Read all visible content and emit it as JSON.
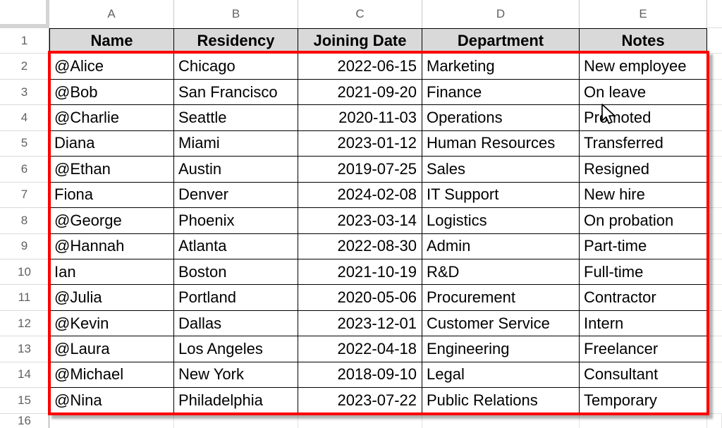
{
  "app": {
    "type": "spreadsheet-grid"
  },
  "colors": {
    "selection_red": "#fb0000",
    "header_row_fill": "#d9d9d9",
    "cell_border": "#000000",
    "ui_header_text": "#616161",
    "corner_gray": "#d4d4d4"
  },
  "column_headers": [
    "A",
    "B",
    "C",
    "D",
    "E"
  ],
  "row_numbers": [
    "1",
    "2",
    "3",
    "4",
    "5",
    "6",
    "7",
    "8",
    "9",
    "10",
    "11",
    "12",
    "13",
    "14",
    "15",
    "16"
  ],
  "table": {
    "headers": [
      "Name",
      "Residency",
      "Joining Date",
      "Department",
      "Notes"
    ],
    "rows": [
      [
        "@Alice",
        "Chicago",
        "2022-06-15",
        "Marketing",
        "New employee"
      ],
      [
        "@Bob",
        "San Francisco",
        "2021-09-20",
        "Finance",
        "On leave"
      ],
      [
        "@Charlie",
        "Seattle",
        "2020-11-03",
        "Operations",
        "Promoted"
      ],
      [
        "Diana",
        "Miami",
        "2023-01-12",
        "Human Resources",
        "Transferred"
      ],
      [
        "@Ethan",
        "Austin",
        "2019-07-25",
        "Sales",
        "Resigned"
      ],
      [
        "Fiona",
        "Denver",
        "2024-02-08",
        "IT Support",
        "New hire"
      ],
      [
        "@George",
        "Phoenix",
        "2023-03-14",
        "Logistics",
        "On probation"
      ],
      [
        "@Hannah",
        "Atlanta",
        "2022-08-30",
        "Admin",
        "Part-time"
      ],
      [
        "Ian",
        "Boston",
        "2021-10-19",
        "R&D",
        "Full-time"
      ],
      [
        "@Julia",
        "Portland",
        "2020-05-06",
        "Procurement",
        "Contractor"
      ],
      [
        "@Kevin",
        "Dallas",
        "2023-12-01",
        "Customer Service",
        "Intern"
      ],
      [
        "@Laura",
        "Los Angeles",
        "2022-04-18",
        "Engineering",
        "Freelancer"
      ],
      [
        "@Michael",
        "New York",
        "2018-09-10",
        "Legal",
        "Consultant"
      ],
      [
        "@Nina",
        "Philadelphia",
        "2023-07-22",
        "Public Relations",
        "Temporary"
      ]
    ],
    "selection_range": "A2:E15"
  },
  "cursor": {
    "icon": "arrow-pointer",
    "over_cell": "E4"
  }
}
